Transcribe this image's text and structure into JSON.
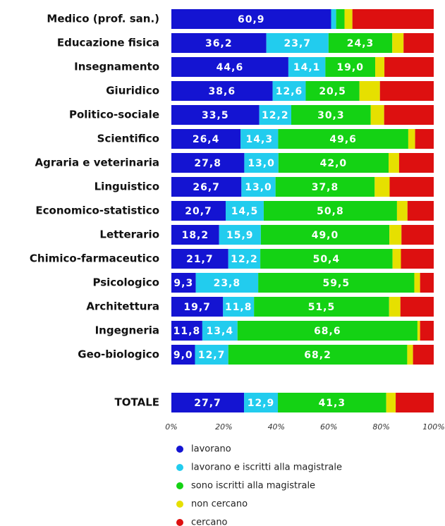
{
  "chart_data": {
    "type": "stacked_barh",
    "categories": [
      "Medico (prof. san.)",
      "Educazione fisica",
      "Insegnamento",
      "Giuridico",
      "Politico-sociale",
      "Scientifico",
      "Agraria e veterinaria",
      "Linguistico",
      "Economico-statistico",
      "Letterario",
      "Chimico-farmaceutico",
      "Psicologico",
      "Architettura",
      "Ingegneria",
      "Geo-biologico",
      null,
      "TOTALE"
    ],
    "series": [
      {
        "name": "lavorano",
        "color": "#1414d2",
        "values": [
          60.9,
          36.2,
          44.6,
          38.6,
          33.5,
          26.4,
          27.8,
          26.7,
          20.7,
          18.2,
          21.7,
          9.3,
          19.7,
          11.8,
          9.0,
          null,
          27.7
        ],
        "value_labels": [
          "60,9",
          "36,2",
          "44,6",
          "38,6",
          "33,5",
          "26,4",
          "27,8",
          "26,7",
          "20,7",
          "18,2",
          "21,7",
          "9,3",
          "19,7",
          "11,8",
          "9,0",
          null,
          "27,7"
        ]
      },
      {
        "name": "lavorano e iscritti alla magistrale",
        "color": "#22ccee",
        "values": [
          1.9,
          23.7,
          14.1,
          12.6,
          12.2,
          14.3,
          13.0,
          13.0,
          14.5,
          15.9,
          12.2,
          23.8,
          11.8,
          13.4,
          12.7,
          null,
          12.9
        ],
        "value_labels": [
          null,
          "23,7",
          "14,1",
          "12,6",
          "12,2",
          "14,3",
          "13,0",
          "13,0",
          "14,5",
          "15,9",
          "12,2",
          "23,8",
          "11,8",
          "13,4",
          "12,7",
          null,
          "12,9"
        ]
      },
      {
        "name": "sono iscritti alla magistrale",
        "color": "#14d214",
        "values": [
          3.2,
          24.3,
          19.0,
          20.5,
          30.3,
          49.6,
          42.0,
          37.8,
          50.8,
          49.0,
          50.4,
          59.5,
          51.5,
          68.6,
          68.2,
          null,
          41.3
        ],
        "value_labels": [
          null,
          "24,3",
          "19,0",
          "20,5",
          "30,3",
          "49,6",
          "42,0",
          "37,8",
          "50,8",
          "49,0",
          "50,4",
          "59,5",
          "51,5",
          "68,6",
          "68,2",
          null,
          "41,3"
        ]
      },
      {
        "name": "non cercano",
        "color": "#e6e000",
        "values": [
          3.0,
          4.3,
          3.5,
          7.8,
          5.1,
          2.6,
          4.0,
          5.7,
          4.0,
          4.6,
          3.2,
          2.2,
          4.3,
          1.0,
          2.2,
          null,
          3.6
        ]
      },
      {
        "name": "cercano",
        "color": "#dd1010",
        "values": [
          31.0,
          11.5,
          18.8,
          20.5,
          18.9,
          7.1,
          13.2,
          16.8,
          10.0,
          12.3,
          12.5,
          5.2,
          12.7,
          5.2,
          7.9,
          null,
          14.5
        ]
      }
    ],
    "xlim": [
      0,
      100
    ],
    "xticks": [
      {
        "value": 0,
        "label": "0%"
      },
      {
        "value": 20,
        "label": "20%"
      },
      {
        "value": 40,
        "label": "40%"
      },
      {
        "value": 60,
        "label": "60%"
      },
      {
        "value": 80,
        "label": "80%"
      },
      {
        "value": 100,
        "label": "100%"
      }
    ]
  }
}
